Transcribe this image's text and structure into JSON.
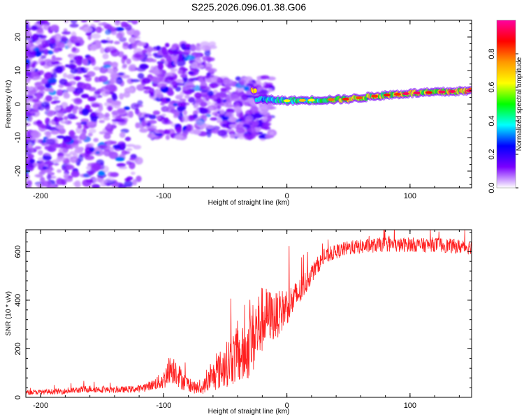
{
  "title": "S225.2026.096.01.38.G06",
  "chart_data": [
    {
      "type": "heatmap",
      "name": "spectrogram",
      "xlabel": "Height of straight line (km)",
      "ylabel": "Frequency (Hz)",
      "xlim": [
        -212,
        150
      ],
      "ylim": [
        -25,
        25
      ],
      "x_ticks": [
        -200,
        -100,
        0,
        100
      ],
      "x_tick_labels": [
        "-200",
        "-100",
        "0",
        "100"
      ],
      "y_ticks": [
        -20,
        -10,
        0,
        10,
        20
      ],
      "y_tick_labels": [
        "-20",
        "-10",
        "0",
        "10",
        "20"
      ],
      "colorbar": {
        "label": "Normalized spectral amplitude",
        "range": [
          0,
          1
        ],
        "ticks": [
          0.0,
          0.2,
          0.4,
          0.6,
          0.8
        ],
        "tick_labels": [
          "0.0",
          "0.2",
          "0.4",
          "0.6",
          "0.8"
        ],
        "colors": [
          "#ffffff",
          "#7a00ff",
          "#0000ff",
          "#00ffff",
          "#00ff00",
          "#ffff00",
          "#ff9900",
          "#ff0000",
          "#ff00a0"
        ]
      },
      "tone_track": [
        {
          "x": -25,
          "freq": 1.5,
          "amp": 0.45
        },
        {
          "x": 0,
          "freq": 1.0,
          "amp": 0.55
        },
        {
          "x": 25,
          "freq": 1.2,
          "amp": 0.6
        },
        {
          "x": 50,
          "freq": 1.5,
          "amp": 0.8
        },
        {
          "x": 75,
          "freq": 2.5,
          "amp": 0.8
        },
        {
          "x": 100,
          "freq": 3.2,
          "amp": 0.85
        },
        {
          "x": 150,
          "freq": 4.0,
          "amp": 0.9
        }
      ]
    },
    {
      "type": "line",
      "name": "snr",
      "xlabel": "Height of straight line (km)",
      "ylabel": "SNR (10 * v/v)",
      "xlim": [
        -212,
        150
      ],
      "ylim": [
        0,
        690
      ],
      "x_ticks": [
        -200,
        -100,
        0,
        100
      ],
      "x_tick_labels": [
        "-200",
        "-100",
        "0",
        "100"
      ],
      "y_ticks": [
        0,
        200,
        400,
        600
      ],
      "y_tick_labels": [
        "0",
        "200",
        "400",
        "600"
      ],
      "color": "#ff2020",
      "series": [
        {
          "name": "SNR",
          "x": [
            -212,
            -200,
            -180,
            -160,
            -140,
            -120,
            -110,
            -100,
            -95,
            -90,
            -85,
            -80,
            -75,
            -70,
            -65,
            -60,
            -55,
            -50,
            -45,
            -40,
            -35,
            -30,
            -25,
            -20,
            -15,
            -10,
            -5,
            0,
            5,
            10,
            15,
            20,
            25,
            30,
            40,
            50,
            60,
            70,
            80,
            90,
            100,
            110,
            120,
            130,
            140,
            150
          ],
          "values": [
            20,
            22,
            25,
            35,
            30,
            35,
            50,
            70,
            120,
            110,
            70,
            55,
            40,
            30,
            60,
            85,
            110,
            130,
            160,
            170,
            170,
            220,
            270,
            320,
            340,
            330,
            350,
            380,
            400,
            430,
            470,
            510,
            545,
            575,
            600,
            615,
            620,
            625,
            630,
            625,
            630,
            625,
            630,
            625,
            620,
            620
          ],
          "noise": [
            10,
            10,
            12,
            15,
            12,
            15,
            20,
            40,
            60,
            60,
            40,
            30,
            25,
            20,
            40,
            60,
            80,
            90,
            110,
            120,
            120,
            140,
            160,
            140,
            110,
            100,
            90,
            80,
            70,
            60,
            50,
            40,
            35,
            30,
            30,
            30,
            30,
            30,
            30,
            30,
            30,
            30,
            30,
            30,
            30,
            30
          ]
        }
      ]
    }
  ]
}
